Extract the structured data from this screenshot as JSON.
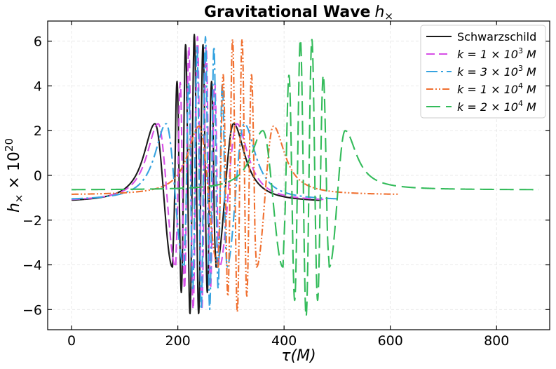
{
  "chart_data": {
    "type": "line",
    "title": "Gravitational Wave h×",
    "title_parts": {
      "text": "Gravitational Wave",
      "symbol": "h",
      "subscript": "×"
    },
    "xlabel": "τ(M)",
    "ylabel": "h× × 10^20",
    "ylabel_parts": {
      "symbol": "h",
      "subscript": "×",
      "times": " × 10",
      "exponent": "20"
    },
    "xlim": [
      -45,
      900
    ],
    "ylim": [
      -6.9,
      6.9
    ],
    "xticks": [
      0,
      200,
      400,
      600,
      800
    ],
    "yticks": [
      -6,
      -4,
      -2,
      0,
      2,
      4,
      6
    ],
    "xtick_labels": [
      "0",
      "200",
      "400",
      "600",
      "800"
    ],
    "ytick_labels": [
      "−6",
      "−4",
      "−2",
      "0",
      "2",
      "4",
      "6"
    ],
    "grid": true,
    "legend_position": "top-right",
    "series": [
      {
        "name": "Schwarzschild",
        "legend": {
          "pre": "Schwarzschild",
          "exp": "",
          "post": ""
        },
        "color": "#1a1a1a",
        "dash": "",
        "x_start": 0,
        "x_end": 470,
        "peak1": 157,
        "ring_start": 190,
        "ring_end": 272,
        "peak2": 305,
        "A": 2.31,
        "base": -1.2,
        "rmin": -6.3,
        "rmax": 6.3,
        "cycles": 5
      },
      {
        "name": "k = 1 × 10^3 M",
        "legend": {
          "pre": "k = 1 × 10",
          "exp": "3",
          "post": " M"
        },
        "color": "#d64fe6",
        "dash": "12 6",
        "x_start": 0,
        "x_end": 478,
        "peak1": 163,
        "ring_start": 196,
        "ring_end": 278,
        "peak2": 311,
        "A": 2.31,
        "base": -1.16,
        "rmin": -6.1,
        "rmax": 6.2,
        "cycles": 5
      },
      {
        "name": "k = 3 × 10^3 M",
        "legend": {
          "pre": "k = 3 × 10",
          "exp": "3",
          "post": " M"
        },
        "color": "#36a3e0",
        "dash": "16 5 3 5",
        "x_start": 0,
        "x_end": 500,
        "peak1": 178,
        "ring_start": 212,
        "ring_end": 292,
        "peak2": 325,
        "A": 2.31,
        "base": -1.12,
        "rmin": -6.1,
        "rmax": 6.2,
        "cycles": 5
      },
      {
        "name": "k = 1 × 10^4 M",
        "legend": {
          "pre": "k = 1 × 10",
          "exp": "4",
          "post": " M"
        },
        "color": "#f07030",
        "dash": "10 3 2 3 2 3",
        "x_start": 0,
        "x_end": 615,
        "peak1": 240,
        "ring_start": 276,
        "ring_end": 348,
        "peak2": 380,
        "A": 2.2,
        "base": -0.88,
        "rmin": -6.1,
        "rmax": 6.25,
        "cycles": 4
      },
      {
        "name": "k = 2 × 10^4 M",
        "legend": {
          "pre": "k = 2 × 10",
          "exp": "4",
          "post": " M"
        },
        "color": "#33bb5a",
        "dash": "20 8",
        "x_start": 0,
        "x_end": 880,
        "peak1": 360,
        "ring_start": 398,
        "ring_end": 485,
        "peak2": 515,
        "A": 2.0,
        "base": -0.65,
        "rmin": -6.3,
        "rmax": 6.25,
        "cycles": 4
      }
    ]
  }
}
